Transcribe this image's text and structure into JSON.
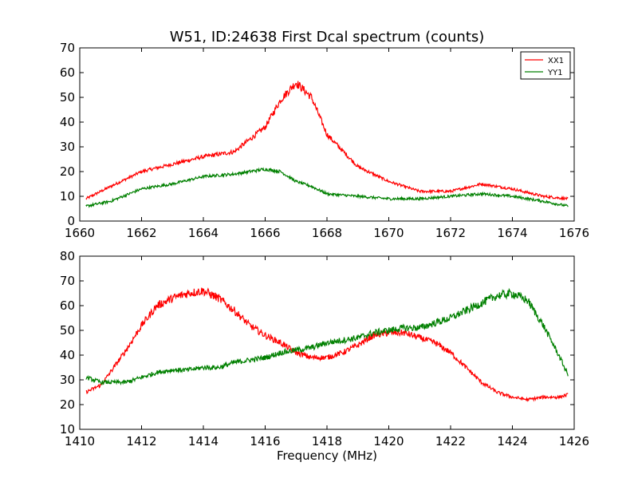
{
  "figure": {
    "title": "W51, ID:24638 First Dcal spectrum (counts)",
    "xlabel": "Frequency (MHz)"
  },
  "colors": {
    "XX1": "#ff0000",
    "YY1": "#008000"
  },
  "chart_data": [
    {
      "type": "line",
      "title": "W51, ID:24638 First Dcal spectrum (counts)",
      "xlabel": "",
      "ylabel": "",
      "xlim": [
        1660,
        1676
      ],
      "ylim": [
        0,
        70
      ],
      "xticks": [
        "1660",
        "1662",
        "1664",
        "1666",
        "1668",
        "1670",
        "1672",
        "1674",
        "1676"
      ],
      "yticks": [
        "0",
        "10",
        "20",
        "30",
        "40",
        "50",
        "60",
        "70"
      ],
      "legend": {
        "placement": "top-right",
        "entries": [
          "XX1",
          "YY1"
        ]
      },
      "grid": false,
      "x": [
        1660.2,
        1661,
        1662,
        1663,
        1664,
        1665,
        1666,
        1666.5,
        1667,
        1667.5,
        1668,
        1669,
        1670,
        1671,
        1672,
        1673,
        1674,
        1675,
        1675.8
      ],
      "series": [
        {
          "name": "XX1",
          "values": [
            9,
            14,
            20,
            23,
            26,
            28,
            38,
            49,
            56,
            50,
            35,
            22,
            16,
            12,
            12,
            15,
            13,
            10,
            9
          ]
        },
        {
          "name": "YY1",
          "values": [
            6,
            8,
            13,
            15,
            18,
            19,
            21,
            20,
            16,
            14,
            11,
            10,
            9,
            9,
            10,
            11,
            10,
            8,
            6
          ]
        }
      ]
    },
    {
      "type": "line",
      "title": "",
      "xlabel": "Frequency (MHz)",
      "ylabel": "",
      "xlim": [
        1410,
        1426
      ],
      "ylim": [
        10,
        80
      ],
      "xticks": [
        "1410",
        "1412",
        "1414",
        "1416",
        "1418",
        "1420",
        "1422",
        "1424",
        "1426"
      ],
      "yticks": [
        "10",
        "20",
        "30",
        "40",
        "50",
        "60",
        "70",
        "80"
      ],
      "grid": false,
      "x": [
        1410.2,
        1410.7,
        1411.5,
        1412,
        1412.5,
        1413,
        1413.5,
        1414,
        1414.5,
        1415,
        1415.5,
        1416,
        1416.5,
        1417,
        1417.5,
        1418,
        1418.5,
        1419,
        1419.5,
        1420,
        1420.5,
        1421,
        1421.5,
        1422,
        1422.5,
        1423,
        1423.5,
        1424,
        1424.5,
        1425,
        1425.5,
        1425.8
      ],
      "series": [
        {
          "name": "XX1",
          "values": [
            25,
            28,
            42,
            52,
            60,
            63,
            65,
            66,
            63,
            58,
            52,
            48,
            45,
            41,
            39,
            39,
            41,
            44,
            48,
            49,
            49,
            47,
            45,
            41,
            35,
            29,
            25,
            23,
            22,
            23,
            23,
            24
          ]
        },
        {
          "name": "YY1",
          "values": [
            31,
            29,
            29,
            31,
            33,
            34,
            34,
            35,
            35,
            37,
            38,
            39,
            41,
            42,
            43,
            45,
            46,
            47,
            49,
            50,
            51,
            51,
            53,
            55,
            58,
            61,
            64,
            65,
            62,
            52,
            40,
            32
          ]
        }
      ]
    }
  ]
}
